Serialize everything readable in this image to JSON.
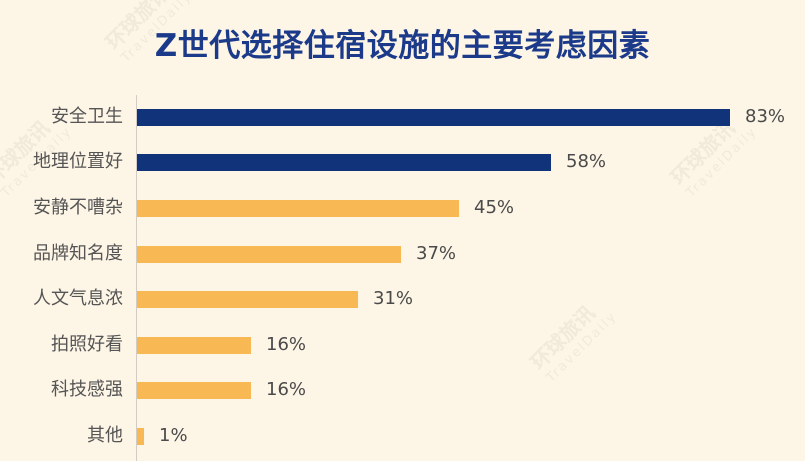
{
  "title": "Z世代选择住宿设施的主要考虑因素",
  "watermark": {
    "cn": "环球旅讯",
    "en": "TravelDaily"
  },
  "colors": {
    "top": "#11337a",
    "rest": "#f8b955",
    "background": "#fdf5e6",
    "title": "#1c3a8a"
  },
  "chart_data": {
    "type": "bar",
    "orientation": "horizontal",
    "title": "Z世代选择住宿设施的主要考虑因素",
    "categories": [
      "安全卫生",
      "地理位置好",
      "安静不嘈杂",
      "品牌知名度",
      "人文气息浓",
      "拍照好看",
      "科技感强",
      "其他"
    ],
    "values": [
      83,
      58,
      45,
      37,
      31,
      16,
      16,
      1
    ],
    "value_labels": [
      "83%",
      "58%",
      "45%",
      "37%",
      "31%",
      "16%",
      "16%",
      "1%"
    ],
    "highlighted": [
      true,
      true,
      false,
      false,
      false,
      false,
      false,
      false
    ],
    "xlabel": "",
    "ylabel": "",
    "unit": "%",
    "grid": false,
    "legend": null
  }
}
